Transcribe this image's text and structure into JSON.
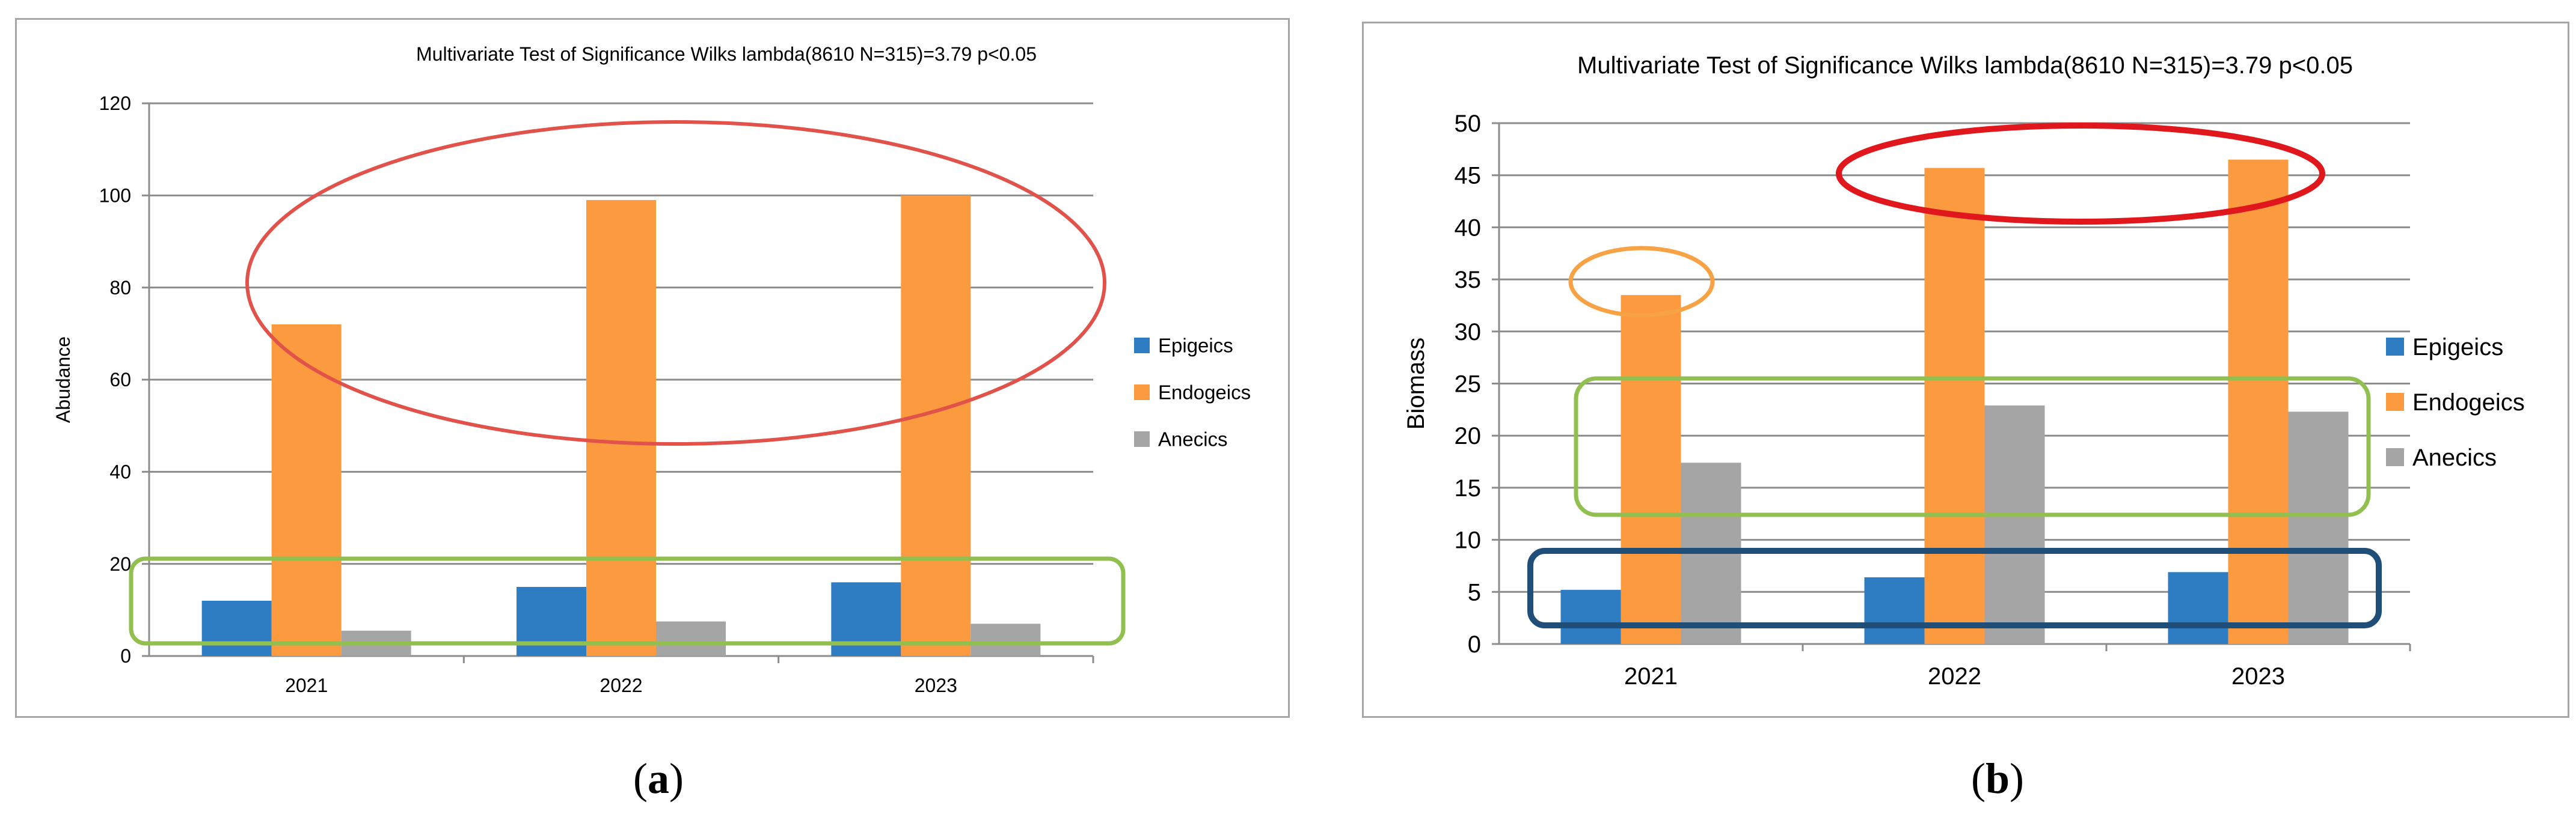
{
  "chart_data": [
    {
      "id": "a",
      "type": "bar",
      "title": "Multivariate Test of Significance Wilks lambda(8610 N=315)=3.79 p<0.05",
      "xlabel": "",
      "ylabel": "Abudance",
      "categories": [
        "2021",
        "2022",
        "2023"
      ],
      "ylim": [
        0,
        120
      ],
      "yticks": [
        0,
        20,
        40,
        60,
        80,
        100,
        120
      ],
      "grid": true,
      "legend_position": "right",
      "series": [
        {
          "name": "Epigeics",
          "color": "#2e7dc3",
          "values": [
            12,
            15,
            16
          ]
        },
        {
          "name": "Endogeics",
          "color": "#fb9a3f",
          "values": [
            72,
            99,
            100
          ]
        },
        {
          "name": "Anecics",
          "color": "#a5a5a5",
          "values": [
            5.5,
            7.5,
            7
          ]
        }
      ],
      "annotations": [
        {
          "shape": "ellipse",
          "color": "#e0524a",
          "encloses": "Endogeics 2021-2023"
        },
        {
          "shape": "rounded-rect",
          "color": "#92c050",
          "encloses": "Epigeics and Anecics 2021-2023"
        }
      ]
    },
    {
      "id": "b",
      "type": "bar",
      "title": "Multivariate Test of Significance Wilks lambda(8610 N=315)=3.79 p<0.05",
      "xlabel": "",
      "ylabel": "Biomass",
      "categories": [
        "2021",
        "2022",
        "2023"
      ],
      "ylim": [
        0,
        50
      ],
      "yticks": [
        0,
        5,
        10,
        15,
        20,
        25,
        30,
        35,
        40,
        45,
        50
      ],
      "grid": true,
      "legend_position": "right",
      "series": [
        {
          "name": "Epigeics",
          "color": "#2e7dc3",
          "values": [
            5.2,
            6.4,
            6.9
          ]
        },
        {
          "name": "Endogeics",
          "color": "#fb9a3f",
          "values": [
            33.5,
            45.7,
            46.5
          ]
        },
        {
          "name": "Anecics",
          "color": "#a5a5a5",
          "values": [
            17.4,
            22.9,
            22.3
          ]
        }
      ],
      "annotations": [
        {
          "shape": "ellipse",
          "color": "#f7a244",
          "encloses": "Endogeics 2021"
        },
        {
          "shape": "ellipse",
          "color": "#e0181d",
          "encloses": "Endogeics 2022-2023"
        },
        {
          "shape": "rounded-rect",
          "color": "#92c050",
          "encloses": "Endogeics and Anecics 15-25 range"
        },
        {
          "shape": "rounded-rect",
          "color": "#1f4e79",
          "encloses": "Epigeics 2021-2023"
        }
      ]
    }
  ],
  "captions": {
    "a": "a",
    "b": "b"
  }
}
